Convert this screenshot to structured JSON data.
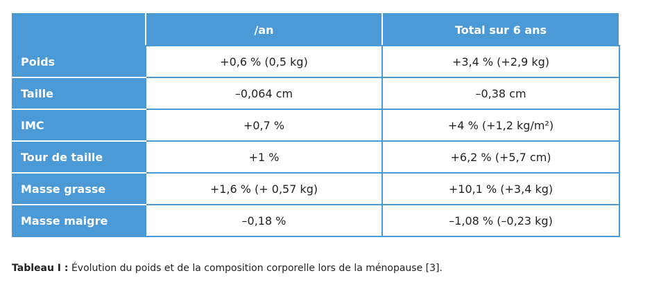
{
  "table": {
    "columns": [
      "/an",
      "Total sur 6 ans"
    ],
    "rows": [
      [
        "Poids",
        "+0,6 % (0,5 kg)",
        "+3,4 % (+2,9 kg)"
      ],
      [
        "Taille",
        "–0,064 cm",
        "–0,38 cm"
      ],
      [
        "IMC",
        "+0,7 %",
        "+4 % (+1,2 kg/m²)"
      ],
      [
        "Tour de taille",
        "+1 %",
        "+6,2 % (+5,7 cm)"
      ],
      [
        "Masse grasse",
        "+1,6 % (+ 0,57 kg)",
        "+10,1 % (+3,4 kg)"
      ],
      [
        "Masse maigre",
        "–0,18 %",
        "–1,08 % (–0,23 kg)"
      ]
    ]
  },
  "caption": {
    "label": "Tableau I :",
    "text": "Évolution du poids et de la composition corporelle lors de la ménopause [3]."
  }
}
